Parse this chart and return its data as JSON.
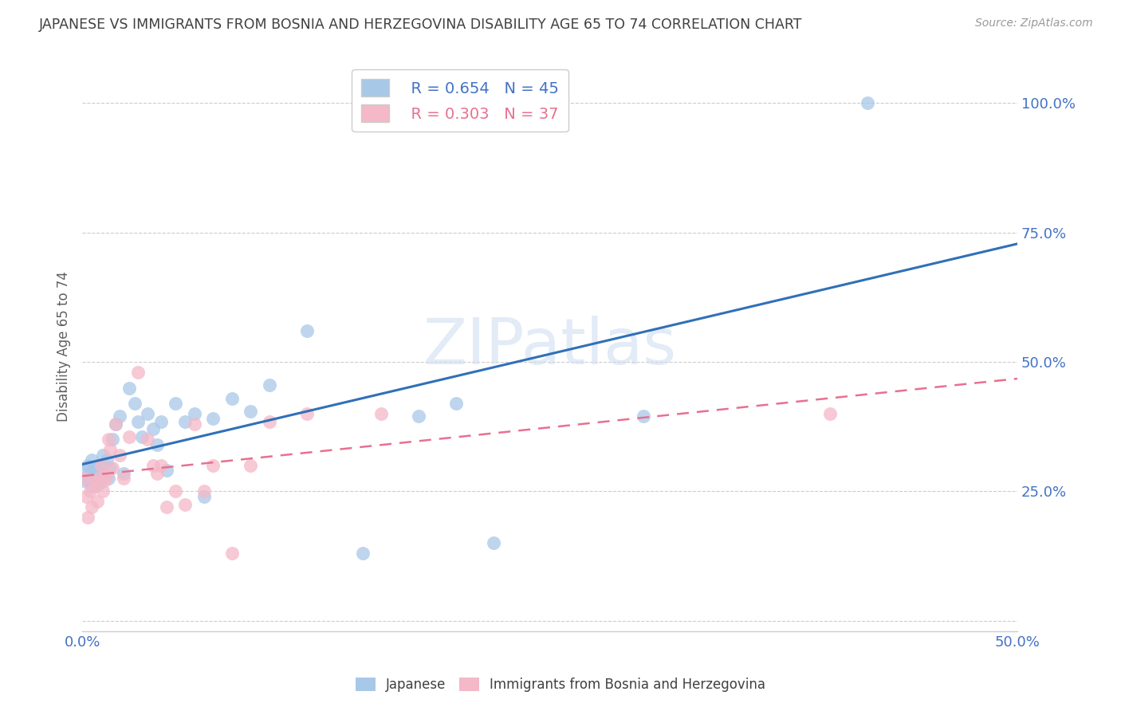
{
  "title": "JAPANESE VS IMMIGRANTS FROM BOSNIA AND HERZEGOVINA DISABILITY AGE 65 TO 74 CORRELATION CHART",
  "source": "Source: ZipAtlas.com",
  "ylabel": "Disability Age 65 to 74",
  "xlim": [
    0.0,
    0.5
  ],
  "ylim": [
    -0.02,
    1.08
  ],
  "japanese_R": 0.654,
  "japanese_N": 45,
  "bosnia_R": 0.303,
  "bosnia_N": 37,
  "japanese_color": "#a8c8e8",
  "bosnia_color": "#f4b8c8",
  "japanese_line_color": "#3070b8",
  "bosnia_line_color": "#e87090",
  "watermark_color": "#d0dff0",
  "japanese_x": [
    0.001,
    0.002,
    0.003,
    0.003,
    0.004,
    0.005,
    0.005,
    0.006,
    0.007,
    0.008,
    0.009,
    0.01,
    0.011,
    0.012,
    0.013,
    0.014,
    0.015,
    0.016,
    0.018,
    0.02,
    0.022,
    0.025,
    0.028,
    0.03,
    0.032,
    0.035,
    0.038,
    0.04,
    0.042,
    0.045,
    0.05,
    0.055,
    0.06,
    0.065,
    0.07,
    0.08,
    0.09,
    0.1,
    0.12,
    0.15,
    0.18,
    0.2,
    0.22,
    0.3,
    0.42
  ],
  "japanese_y": [
    0.27,
    0.29,
    0.275,
    0.3,
    0.285,
    0.26,
    0.31,
    0.28,
    0.295,
    0.29,
    0.265,
    0.3,
    0.32,
    0.28,
    0.31,
    0.275,
    0.295,
    0.35,
    0.38,
    0.395,
    0.285,
    0.45,
    0.42,
    0.385,
    0.355,
    0.4,
    0.37,
    0.34,
    0.385,
    0.29,
    0.42,
    0.385,
    0.4,
    0.24,
    0.39,
    0.43,
    0.405,
    0.455,
    0.56,
    0.13,
    0.395,
    0.42,
    0.15,
    0.395,
    1.0
  ],
  "bosnia_x": [
    0.001,
    0.002,
    0.003,
    0.004,
    0.005,
    0.006,
    0.007,
    0.008,
    0.009,
    0.01,
    0.011,
    0.012,
    0.013,
    0.014,
    0.015,
    0.016,
    0.018,
    0.02,
    0.022,
    0.025,
    0.03,
    0.035,
    0.038,
    0.04,
    0.042,
    0.045,
    0.05,
    0.055,
    0.06,
    0.065,
    0.07,
    0.08,
    0.09,
    0.1,
    0.12,
    0.16,
    0.4
  ],
  "bosnia_y": [
    0.275,
    0.24,
    0.2,
    0.25,
    0.22,
    0.27,
    0.26,
    0.23,
    0.275,
    0.3,
    0.25,
    0.27,
    0.28,
    0.35,
    0.33,
    0.295,
    0.38,
    0.32,
    0.275,
    0.355,
    0.48,
    0.35,
    0.3,
    0.285,
    0.3,
    0.22,
    0.25,
    0.225,
    0.38,
    0.25,
    0.3,
    0.13,
    0.3,
    0.385,
    0.4,
    0.4,
    0.4
  ],
  "grid_color": "#cccccc",
  "bg_color": "#ffffff",
  "title_color": "#404040",
  "axis_label_color": "#606060",
  "tick_label_color": "#4472c4",
  "legend_R_color": "#4472c4",
  "legend_R2_color": "#e87090"
}
